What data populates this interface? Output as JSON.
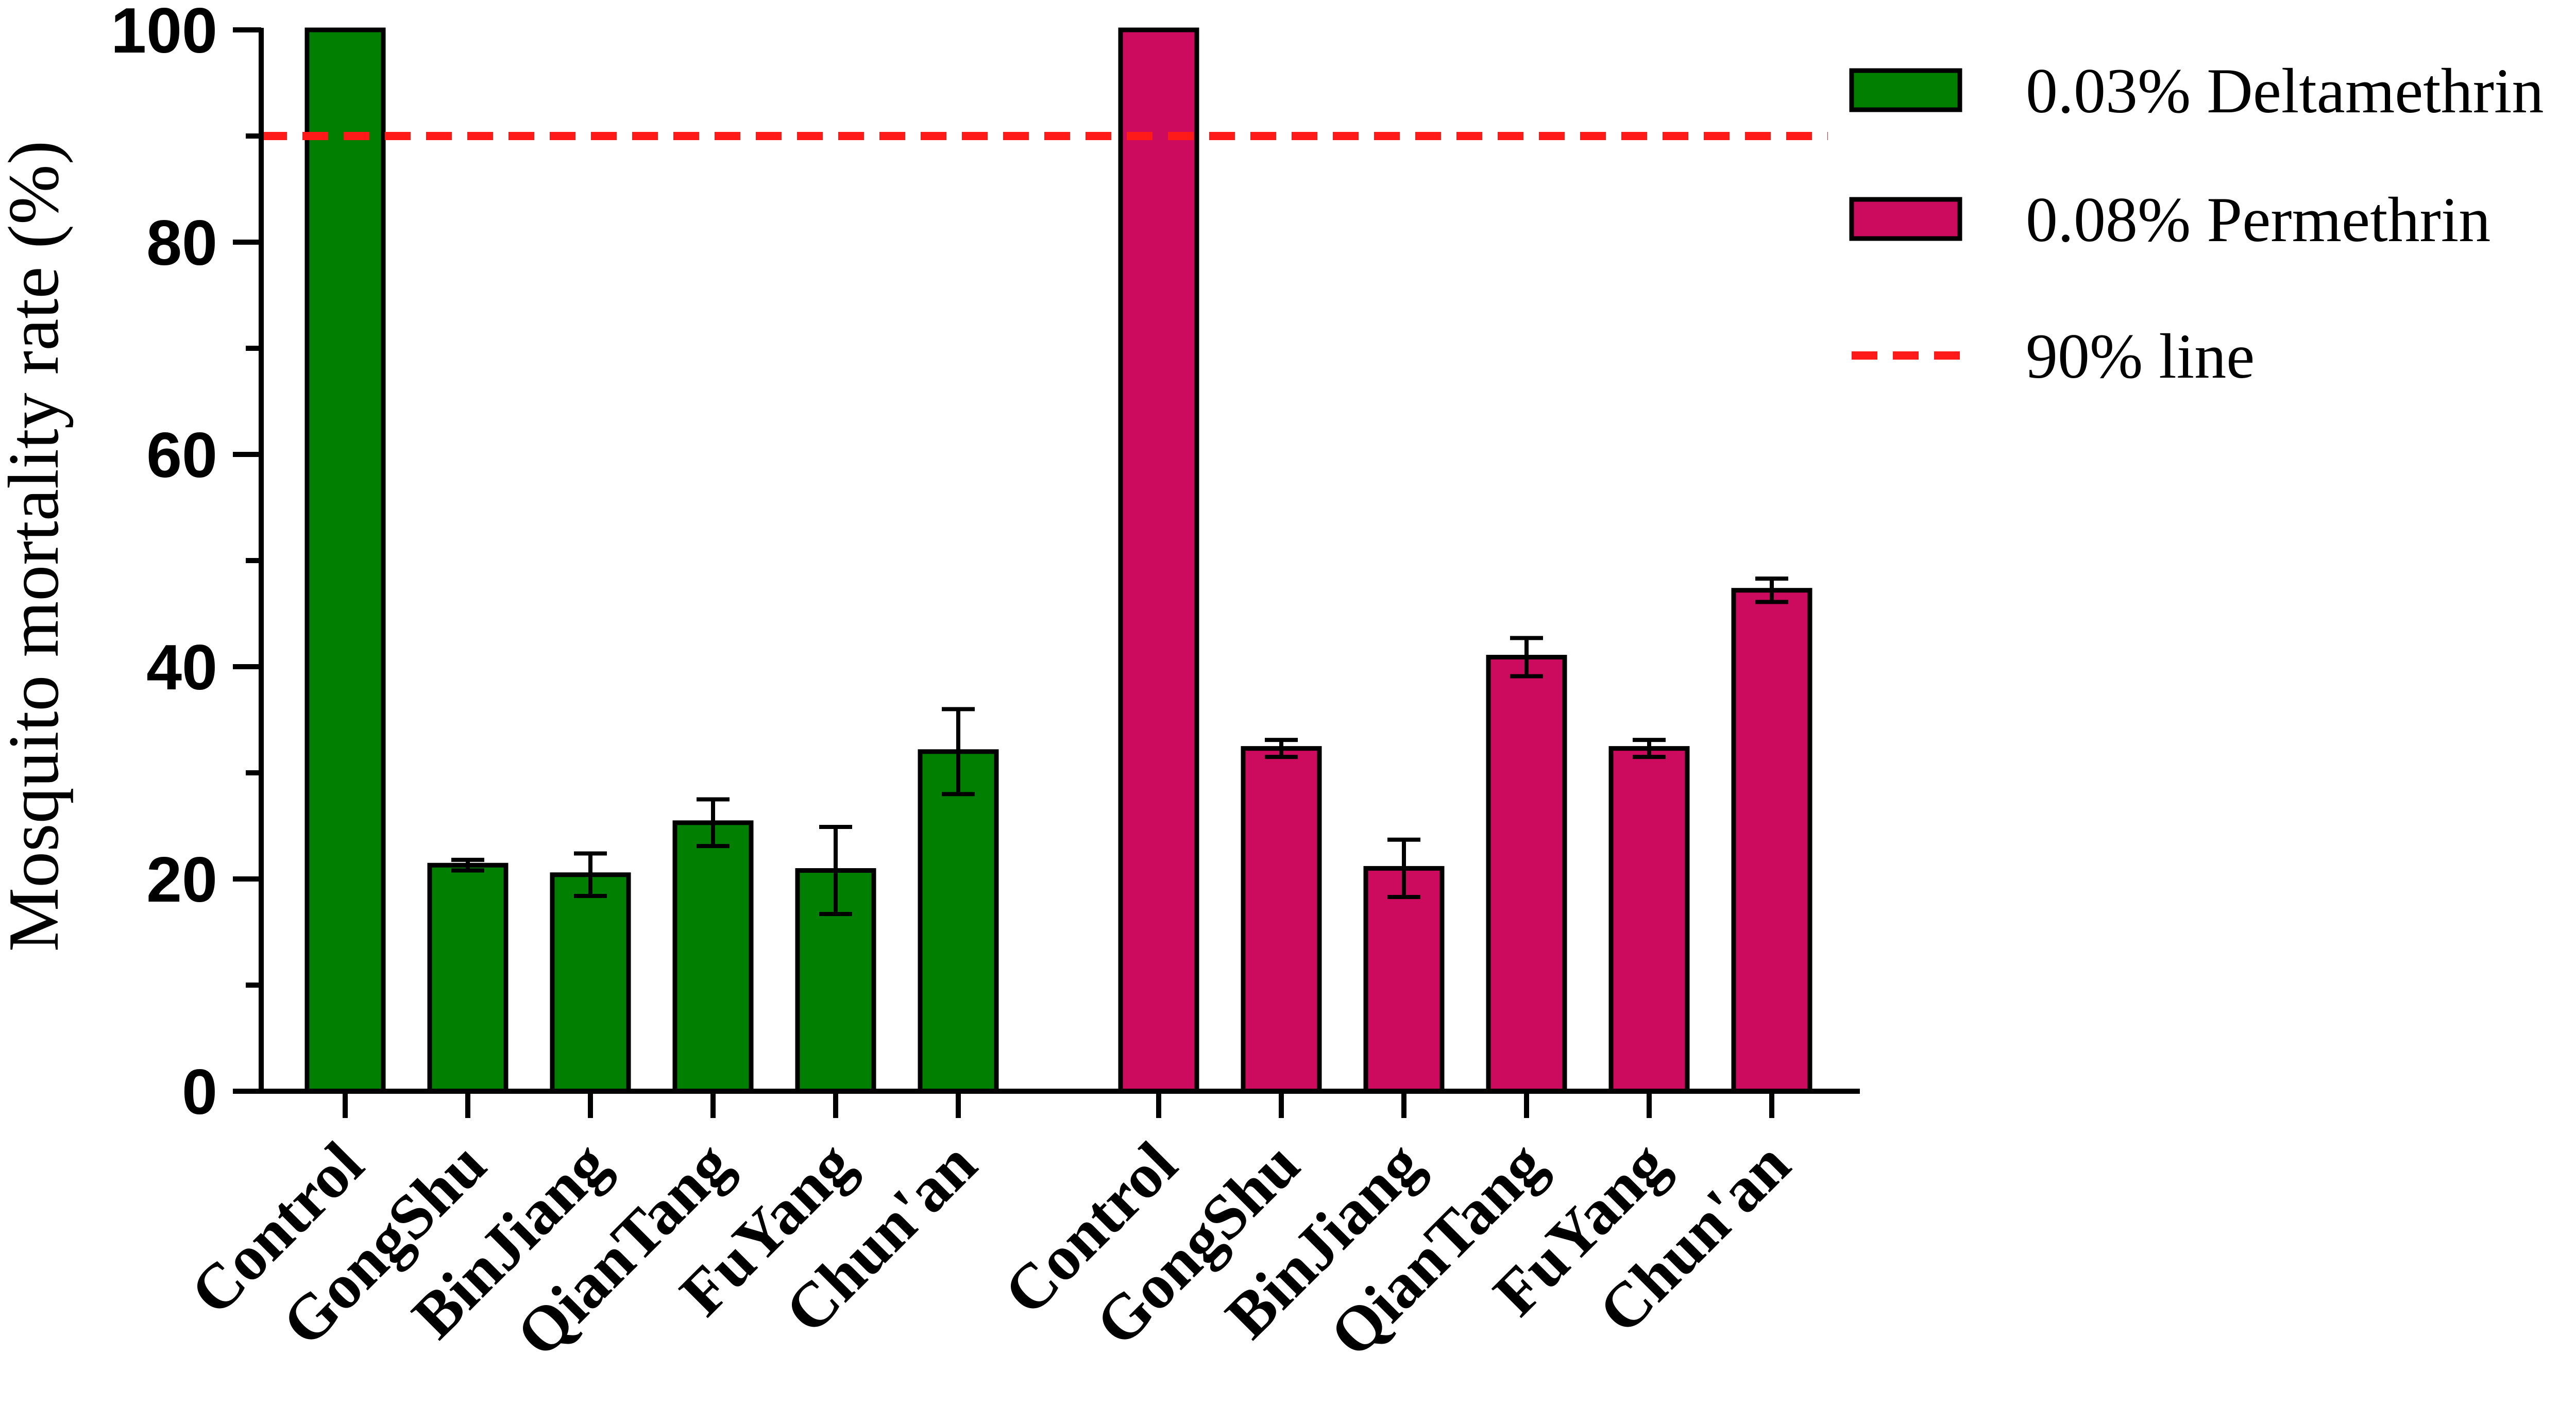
{
  "chart_data": {
    "type": "bar",
    "ylabel": "Mosquito mortality rate (%)",
    "xlabel": "",
    "ylim": [
      0,
      100
    ],
    "yticks": [
      "0",
      "20",
      "40",
      "60",
      "80",
      "100"
    ],
    "reference_line": {
      "name": "90% line",
      "value": 90,
      "color": "#ff1a1a",
      "style": "dashed"
    },
    "legend_position": "top-right",
    "grid": false,
    "groups": [
      {
        "name": "0.03% Deltamethrin",
        "color": "#007f00",
        "categories": [
          "Control",
          "GongShu",
          "BinJiang",
          "QianTang",
          "FuYang",
          "Chun'an"
        ],
        "values": [
          100,
          21.3,
          20.4,
          25.3,
          20.8,
          32.0
        ],
        "errors": [
          0,
          0.5,
          2.0,
          2.2,
          4.1,
          4.0
        ]
      },
      {
        "name": "0.08% Permethrin",
        "color": "#cc0a5e",
        "categories": [
          "Control",
          "GongShu",
          "BinJiang",
          "QianTang",
          "FuYang",
          "Chun'an"
        ],
        "values": [
          100,
          32.3,
          21.0,
          40.9,
          32.3,
          47.2
        ],
        "errors": [
          0,
          0.8,
          2.7,
          1.8,
          0.8,
          1.1
        ]
      }
    ]
  }
}
